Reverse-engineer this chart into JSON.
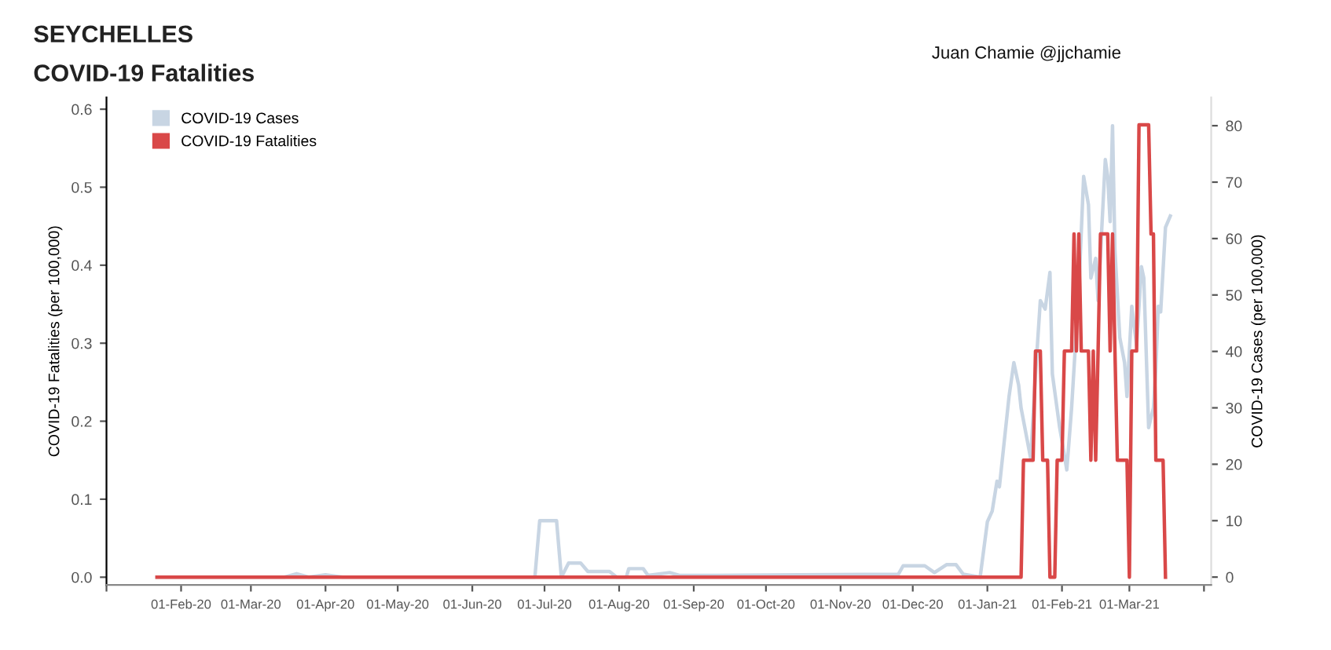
{
  "chart_data": {
    "type": "line",
    "title": "SEYCHELLES",
    "subtitle": "COVID-19 Fatalities",
    "ylabel": "COVID-19 Fatalities (per 100,000)",
    "y2label": "COVID-19 Cases (per 100,000)",
    "annotations": [
      "Juan Chamie @jjchamie"
    ],
    "xlim": [
      "2020-01-01",
      "2021-04-04"
    ],
    "xticks": [
      {
        "value": "2020-01-01",
        "label": null
      },
      {
        "value": "2020-02-01",
        "label": "01-Feb-20"
      },
      {
        "value": "2020-03-01",
        "label": "01-Mar-20"
      },
      {
        "value": "2020-04-01",
        "label": "01-Apr-20"
      },
      {
        "value": "2020-05-01",
        "label": "01-May-20"
      },
      {
        "value": "2020-06-01",
        "label": "01-Jun-20"
      },
      {
        "value": "2020-07-01",
        "label": "01-Jul-20"
      },
      {
        "value": "2020-08-01",
        "label": "01-Aug-20"
      },
      {
        "value": "2020-09-01",
        "label": "01-Sep-20"
      },
      {
        "value": "2020-10-01",
        "label": "01-Oct-20"
      },
      {
        "value": "2020-11-01",
        "label": "01-Nov-20"
      },
      {
        "value": "2020-12-01",
        "label": "01-Dec-20"
      },
      {
        "value": "2021-01-01",
        "label": "01-Jan-21"
      },
      {
        "value": "2021-02-01",
        "label": "01-Feb-21"
      },
      {
        "value": "2021-03-01",
        "label": "01-Mar-21"
      },
      {
        "value": "2021-04-01",
        "label": null
      }
    ],
    "ylim": [
      -0.01,
      0.615
    ],
    "yticks": [
      {
        "value": 0,
        "label": "0.0"
      },
      0.1,
      0.2,
      0.3,
      0.4,
      0.5,
      0.6
    ],
    "y2lim": [
      -1.4,
      85
    ],
    "y2ticks": [
      0,
      10,
      20,
      30,
      40,
      50,
      60,
      70,
      80
    ],
    "grid": false,
    "legend": "top left",
    "marker": "none",
    "line_style": "solid",
    "series": [
      {
        "name": "COVID-19 Cases",
        "color": "#c8d5e3",
        "axis": "y2",
        "x": [
          "2020-01-22",
          "2020-03-15",
          "2020-03-20",
          "2020-03-25",
          "2020-04-01",
          "2020-04-08",
          "2020-06-27",
          "2020-06-29",
          "2020-07-06",
          "2020-07-08",
          "2020-07-11",
          "2020-07-16",
          "2020-07-19",
          "2020-07-28",
          "2020-07-31",
          "2020-08-04",
          "2020-08-05",
          "2020-08-11",
          "2020-08-13",
          "2020-08-22",
          "2020-08-26",
          "2020-09-10",
          "2020-11-25",
          "2020-11-27",
          "2020-12-06",
          "2020-12-10",
          "2020-12-15",
          "2020-12-19",
          "2020-12-22",
          "2020-12-29",
          "2021-01-01",
          "2021-01-03",
          "2021-01-05",
          "2021-01-06",
          "2021-01-10",
          "2021-01-12",
          "2021-01-14",
          "2021-01-15",
          "2021-01-19",
          "2021-01-21",
          "2021-01-23",
          "2021-01-25",
          "2021-01-27",
          "2021-01-28",
          "2021-01-31",
          "2021-02-03",
          "2021-02-05",
          "2021-02-08",
          "2021-02-10",
          "2021-02-12",
          "2021-02-13",
          "2021-02-15",
          "2021-02-16",
          "2021-02-19",
          "2021-02-20",
          "2021-02-21",
          "2021-02-22",
          "2021-02-23",
          "2021-02-25",
          "2021-02-27",
          "2021-02-28",
          "2021-03-02",
          "2021-03-04",
          "2021-03-06",
          "2021-03-07",
          "2021-03-09",
          "2021-03-11",
          "2021-03-12",
          "2021-03-13",
          "2021-03-14",
          "2021-03-16",
          "2021-03-18"
        ],
        "values": [
          0,
          0,
          0.6,
          0,
          0.4,
          0,
          0,
          10,
          10,
          0,
          2.5,
          2.5,
          1,
          1,
          0,
          0,
          1.5,
          1.5,
          0.3,
          0.8,
          0.3,
          0.3,
          0.5,
          2,
          2,
          0.8,
          2.2,
          2.2,
          0.5,
          0,
          9.8,
          11.7,
          17,
          16,
          32,
          38,
          34,
          30,
          21,
          36,
          49,
          47.5,
          54,
          36,
          26.6,
          19,
          30,
          51,
          71,
          66,
          53,
          56.5,
          49,
          74,
          71,
          63,
          80,
          58,
          42.5,
          38,
          32,
          48,
          41,
          55,
          53,
          26.5,
          30,
          37,
          48,
          47,
          62,
          64
        ]
      },
      {
        "name": "COVID-19 Fatalities",
        "color": "#d94848",
        "x": [
          "2020-01-22",
          "2021-01-15",
          "2021-01-16",
          "2021-01-20",
          "2021-01-21",
          "2021-01-23",
          "2021-01-24",
          "2021-01-26",
          "2021-01-27",
          "2021-01-29",
          "2021-01-30",
          "2021-02-01",
          "2021-02-02",
          "2021-02-05",
          "2021-02-06",
          "2021-02-07",
          "2021-02-08",
          "2021-02-09",
          "2021-02-12",
          "2021-02-13",
          "2021-02-14",
          "2021-02-15",
          "2021-02-16",
          "2021-02-17",
          "2021-02-20",
          "2021-02-21",
          "2021-02-22",
          "2021-02-23",
          "2021-02-24",
          "2021-02-28",
          "2021-03-01",
          "2021-03-02",
          "2021-03-04",
          "2021-03-05",
          "2021-03-09",
          "2021-03-10",
          "2021-03-11",
          "2021-03-12",
          "2021-03-15",
          "2021-03-16"
        ],
        "values": [
          0,
          0,
          0.15,
          0.15,
          0.29,
          0.29,
          0.15,
          0.15,
          0,
          0,
          0.15,
          0.15,
          0.29,
          0.29,
          0.44,
          0.29,
          0.44,
          0.29,
          0.29,
          0.15,
          0.29,
          0.15,
          0.29,
          0.44,
          0.44,
          0.29,
          0.44,
          0.29,
          0.15,
          0.15,
          0,
          0.29,
          0.29,
          0.58,
          0.58,
          0.44,
          0.44,
          0.15,
          0.15,
          0
        ]
      }
    ]
  }
}
